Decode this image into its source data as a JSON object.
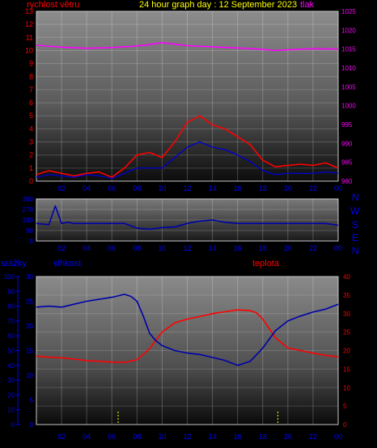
{
  "header": {
    "wind_speed_label": "rychlost větru",
    "title": "24 hour graph day : 12 September 2023",
    "pressure_label": "tlak"
  },
  "compass": [
    "N",
    "W",
    "S",
    "E",
    "N"
  ],
  "bottom_labels": {
    "rain": "srážky",
    "humidity": "vlhkost",
    "temperature": "teplota"
  },
  "colors": {
    "wind": "#ff0000",
    "gust": "#0000cc",
    "pressure": "#ff00ff",
    "humidity": "#0000aa",
    "temperature": "#ff0000",
    "rain_axis": "#0000ff",
    "title": "#ffff00",
    "axis_red": "#ff0000",
    "axis_magenta": "#ff00ff"
  },
  "chart_data": [
    {
      "type": "line",
      "title": "24 hour graph day : 12 September 2023",
      "x_ticks": [
        "02",
        "04",
        "06",
        "08",
        "10",
        "12",
        "14",
        "16",
        "18",
        "20",
        "22",
        "00"
      ],
      "y_left_label": "rychlost větru",
      "y_left_ticks": [
        0,
        1,
        2,
        3,
        4,
        5,
        6,
        7,
        8,
        9,
        10,
        11,
        12,
        13
      ],
      "y_left_lim": [
        0,
        13
      ],
      "y_right_label": "tlak",
      "y_right_ticks": [
        980,
        985,
        990,
        995,
        1000,
        1005,
        1010,
        1015,
        1020,
        1025
      ],
      "y_right_lim": [
        980,
        1025
      ],
      "series": [
        {
          "name": "rychlost větru",
          "axis": "left",
          "x": [
            0,
            1,
            2,
            3,
            4,
            5,
            6,
            7,
            8,
            9,
            10,
            11,
            12,
            13,
            14,
            15,
            16,
            17,
            18,
            19,
            20,
            21,
            22,
            23,
            24
          ],
          "values": [
            0.5,
            0.8,
            0.6,
            0.4,
            0.6,
            0.7,
            0.3,
            1.0,
            2.0,
            2.2,
            1.8,
            3.0,
            4.5,
            5.0,
            4.3,
            4.0,
            3.4,
            2.8,
            1.6,
            1.1,
            1.2,
            1.3,
            1.2,
            1.4,
            1.0
          ]
        },
        {
          "name": "",
          "axis": "left",
          "x": [
            0,
            1,
            2,
            3,
            4,
            5,
            6,
            7,
            8,
            9,
            10,
            11,
            12,
            13,
            14,
            15,
            16,
            17,
            18,
            19,
            20,
            21,
            22,
            23,
            24
          ],
          "values": [
            0.3,
            0.5,
            0.4,
            0.3,
            0.5,
            0.4,
            0.2,
            0.6,
            1.0,
            1.0,
            1.0,
            1.8,
            2.6,
            3.0,
            2.6,
            2.4,
            2.0,
            1.5,
            0.8,
            0.5,
            0.6,
            0.6,
            0.6,
            0.7,
            0.6
          ]
        },
        {
          "name": "tlak",
          "axis": "right",
          "x": [
            0,
            2,
            4,
            6,
            8,
            9,
            10,
            11,
            12,
            14,
            16,
            18,
            19,
            20,
            22,
            24
          ],
          "values": [
            1016.0,
            1015.5,
            1015.2,
            1015.4,
            1015.8,
            1016.2,
            1016.7,
            1016.3,
            1015.9,
            1015.6,
            1015.3,
            1014.9,
            1014.6,
            1014.8,
            1015.1,
            1015.0
          ]
        }
      ]
    },
    {
      "type": "line",
      "x_ticks": [
        "02",
        "04",
        "06",
        "08",
        "10",
        "12",
        "14",
        "16",
        "18",
        "20",
        "22",
        "00"
      ],
      "y_ticks": [
        0,
        90,
        180,
        270,
        360
      ],
      "y_lim": [
        0,
        360
      ],
      "compass_labels": [
        "N",
        "W",
        "S",
        "E",
        "N"
      ],
      "series": [
        {
          "name": "",
          "x": [
            0,
            1,
            1.5,
            2,
            2.5,
            3,
            4,
            5,
            6,
            7,
            8,
            9,
            10,
            11,
            12,
            13,
            14,
            15,
            16,
            17,
            18,
            19,
            20,
            21,
            22,
            23,
            24
          ],
          "values": [
            150,
            140,
            300,
            150,
            160,
            150,
            150,
            150,
            150,
            150,
            110,
            100,
            115,
            120,
            150,
            170,
            180,
            160,
            150,
            150,
            150,
            150,
            150,
            150,
            150,
            150,
            135
          ]
        }
      ]
    },
    {
      "type": "line",
      "x_ticks": [
        "02",
        "04",
        "06",
        "08",
        "10",
        "12",
        "14",
        "16",
        "18",
        "20",
        "22",
        "00"
      ],
      "y_rain_label": "srážky",
      "y_rain_ticks": [
        0,
        10,
        20,
        30,
        40,
        50,
        60,
        70,
        80,
        90,
        100
      ],
      "y_rain_lim": [
        0,
        100
      ],
      "y_humidity_label": "vlhkost",
      "y_humidity_ticks": [
        0,
        5,
        10,
        15,
        20,
        25,
        30
      ],
      "y_humidity_lim": [
        0,
        30
      ],
      "y_temperature_label": "teplota",
      "y_temperature_ticks": [
        0,
        5,
        10,
        15,
        20,
        25,
        30,
        35,
        40
      ],
      "y_temperature_lim": [
        0,
        40
      ],
      "series": [
        {
          "name": "vlhkost",
          "axis": "humidity",
          "x": [
            0,
            1,
            2,
            3,
            4,
            5,
            6,
            7,
            7.5,
            8,
            8.5,
            9,
            9.5,
            10,
            11,
            12,
            13,
            14,
            15,
            16,
            17,
            18,
            19,
            20,
            21,
            22,
            23,
            24
          ],
          "values": [
            23.8,
            24.0,
            23.8,
            24.4,
            25.0,
            25.4,
            25.8,
            26.4,
            26.0,
            25.0,
            22.0,
            18.5,
            17.0,
            16.0,
            15.0,
            14.5,
            14.2,
            13.6,
            13.0,
            12.0,
            12.8,
            15.5,
            19.0,
            21.0,
            22.0,
            22.8,
            23.4,
            24.4
          ]
        },
        {
          "name": "teplota",
          "axis": "temperature",
          "x": [
            0,
            1,
            2,
            3,
            4,
            5,
            6,
            7,
            8,
            9,
            10,
            11,
            12,
            13,
            14,
            15,
            16,
            17,
            17.5,
            18,
            19,
            20,
            21,
            22,
            23,
            24
          ],
          "values": [
            18.5,
            18.2,
            18.0,
            17.7,
            17.3,
            17.1,
            16.9,
            16.8,
            17.5,
            20.5,
            25.0,
            27.5,
            28.5,
            29.2,
            30.0,
            30.5,
            31.0,
            30.8,
            30.2,
            28.5,
            23.5,
            20.7,
            20.0,
            19.3,
            18.7,
            18.3
          ]
        }
      ],
      "rain_events_hours": [
        6.5,
        19.2
      ]
    }
  ]
}
